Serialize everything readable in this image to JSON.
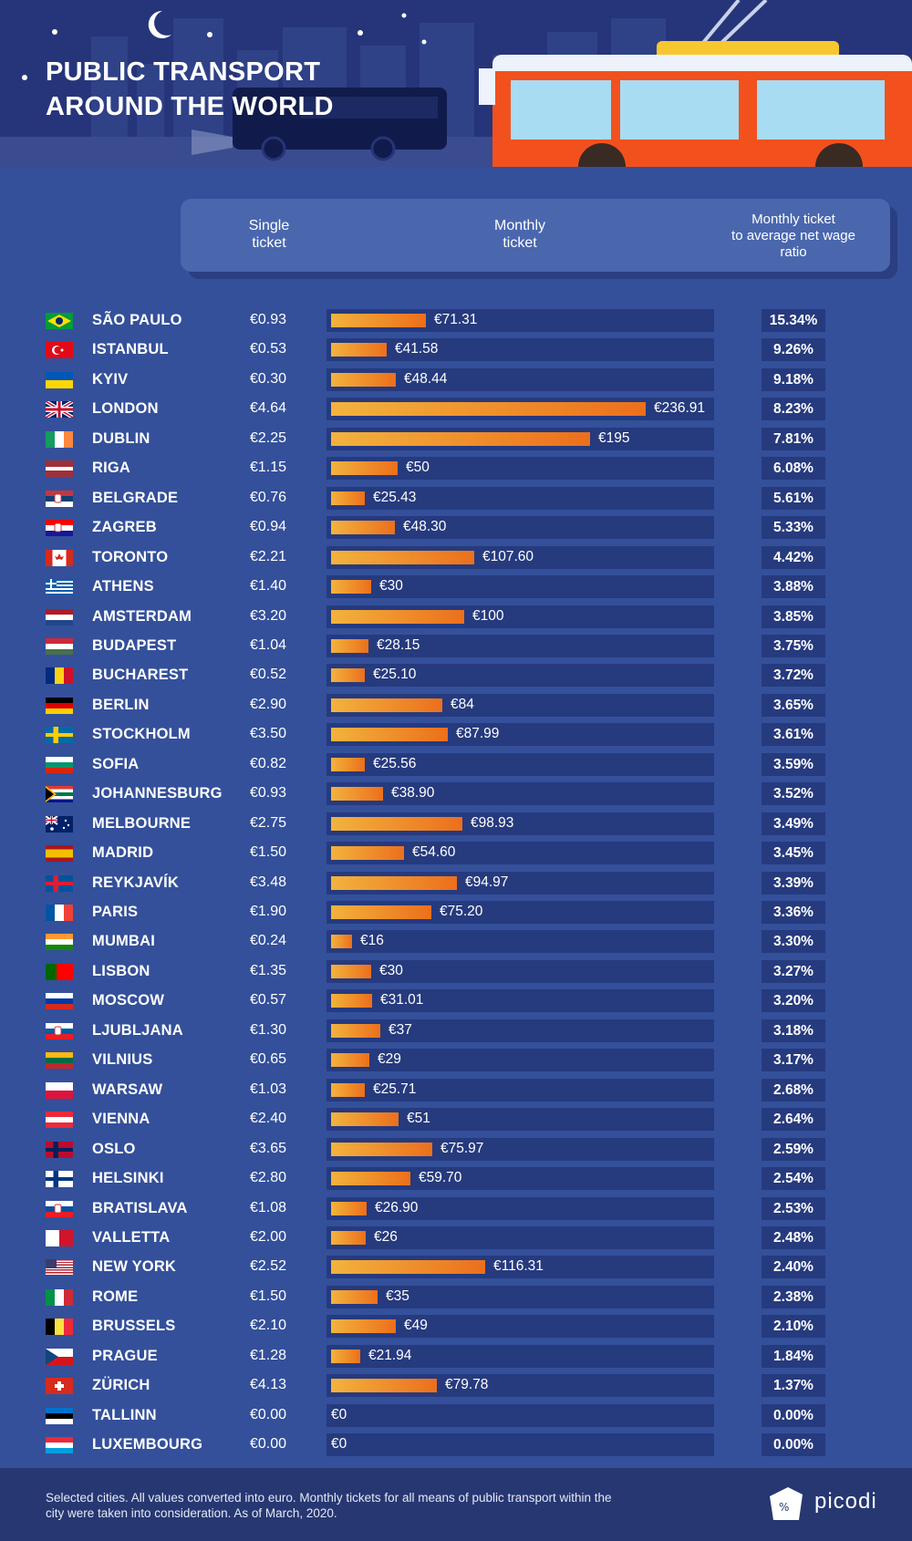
{
  "title_line1": "PUBLIC TRANSPORT",
  "title_line2": "AROUND THE WORLD",
  "columns": {
    "single": "Single\nticket",
    "monthly": "Monthly\nticket",
    "ratio": "Monthly ticket\nto average net wage\nratio"
  },
  "footer_note": "Selected cities. All values converted into euro. Monthly tickets for all means of public transport within the city were taken into consideration. As of March, 2020.",
  "brand": "picodi",
  "colors": {
    "bar_start": "#f2b33d",
    "bar_end": "#ec6f1c",
    "background": "#34509a",
    "track": "#263a7e"
  },
  "chart_data": {
    "type": "bar",
    "title": "PUBLIC TRANSPORT AROUND THE WORLD",
    "value_max": 236.91,
    "rows": [
      {
        "city": "SÃO PAULO",
        "flag": "brazil-flag-icon",
        "single": "€0.93",
        "monthly": 71.31,
        "monthly_label": "€71.31",
        "ratio": "15.34%"
      },
      {
        "city": "ISTANBUL",
        "flag": "turkey-flag-icon",
        "single": "€0.53",
        "monthly": 41.58,
        "monthly_label": "€41.58",
        "ratio": "9.26%"
      },
      {
        "city": "KYIV",
        "flag": "ukraine-flag-icon",
        "single": "€0.30",
        "monthly": 48.44,
        "monthly_label": "€48.44",
        "ratio": "9.18%"
      },
      {
        "city": "LONDON",
        "flag": "uk-flag-icon",
        "single": "€4.64",
        "monthly": 236.91,
        "monthly_label": "€236.91",
        "ratio": "8.23%"
      },
      {
        "city": "DUBLIN",
        "flag": "ireland-flag-icon",
        "single": "€2.25",
        "monthly": 195,
        "monthly_label": "€195",
        "ratio": "7.81%"
      },
      {
        "city": "RIGA",
        "flag": "latvia-flag-icon",
        "single": "€1.15",
        "monthly": 50,
        "monthly_label": "€50",
        "ratio": "6.08%"
      },
      {
        "city": "BELGRADE",
        "flag": "serbia-flag-icon",
        "single": "€0.76",
        "monthly": 25.43,
        "monthly_label": "€25.43",
        "ratio": "5.61%"
      },
      {
        "city": "ZAGREB",
        "flag": "croatia-flag-icon",
        "single": "€0.94",
        "monthly": 48.3,
        "monthly_label": "€48.30",
        "ratio": "5.33%"
      },
      {
        "city": "TORONTO",
        "flag": "canada-flag-icon",
        "single": "€2.21",
        "monthly": 107.6,
        "monthly_label": "€107.60",
        "ratio": "4.42%"
      },
      {
        "city": "ATHENS",
        "flag": "greece-flag-icon",
        "single": "€1.40",
        "monthly": 30,
        "monthly_label": "€30",
        "ratio": "3.88%"
      },
      {
        "city": "AMSTERDAM",
        "flag": "netherlands-flag-icon",
        "single": "€3.20",
        "monthly": 100,
        "monthly_label": "€100",
        "ratio": "3.85%"
      },
      {
        "city": "BUDAPEST",
        "flag": "hungary-flag-icon",
        "single": "€1.04",
        "monthly": 28.15,
        "monthly_label": "€28.15",
        "ratio": "3.75%"
      },
      {
        "city": "BUCHAREST",
        "flag": "romania-flag-icon",
        "single": "€0.52",
        "monthly": 25.1,
        "monthly_label": "€25.10",
        "ratio": "3.72%"
      },
      {
        "city": "BERLIN",
        "flag": "germany-flag-icon",
        "single": "€2.90",
        "monthly": 84,
        "monthly_label": "€84",
        "ratio": "3.65%"
      },
      {
        "city": "STOCKHOLM",
        "flag": "sweden-flag-icon",
        "single": "€3.50",
        "monthly": 87.99,
        "monthly_label": "€87.99",
        "ratio": "3.61%"
      },
      {
        "city": "SOFIA",
        "flag": "bulgaria-flag-icon",
        "single": "€0.82",
        "monthly": 25.56,
        "monthly_label": "€25.56",
        "ratio": "3.59%"
      },
      {
        "city": "JOHANNESBURG",
        "flag": "south-africa-flag-icon",
        "single": "€0.93",
        "monthly": 38.9,
        "monthly_label": "€38.90",
        "ratio": "3.52%"
      },
      {
        "city": "MELBOURNE",
        "flag": "australia-flag-icon",
        "single": "€2.75",
        "monthly": 98.93,
        "monthly_label": "€98.93",
        "ratio": "3.49%"
      },
      {
        "city": "MADRID",
        "flag": "spain-flag-icon",
        "single": "€1.50",
        "monthly": 54.6,
        "monthly_label": "€54.60",
        "ratio": "3.45%"
      },
      {
        "city": "REYKJAVÍK",
        "flag": "iceland-flag-icon",
        "single": "€3.48",
        "monthly": 94.97,
        "monthly_label": "€94.97",
        "ratio": "3.39%"
      },
      {
        "city": "PARIS",
        "flag": "france-flag-icon",
        "single": "€1.90",
        "monthly": 75.2,
        "monthly_label": "€75.20",
        "ratio": "3.36%"
      },
      {
        "city": "MUMBAI",
        "flag": "india-flag-icon",
        "single": "€0.24",
        "monthly": 16,
        "monthly_label": "€16",
        "ratio": "3.30%"
      },
      {
        "city": "LISBON",
        "flag": "portugal-flag-icon",
        "single": "€1.35",
        "monthly": 30,
        "monthly_label": "€30",
        "ratio": "3.27%"
      },
      {
        "city": "MOSCOW",
        "flag": "russia-flag-icon",
        "single": "€0.57",
        "monthly": 31.01,
        "monthly_label": "€31.01",
        "ratio": "3.20%"
      },
      {
        "city": "LJUBLJANA",
        "flag": "slovenia-flag-icon",
        "single": "€1.30",
        "monthly": 37,
        "monthly_label": "€37",
        "ratio": "3.18%"
      },
      {
        "city": "VILNIUS",
        "flag": "lithuania-flag-icon",
        "single": "€0.65",
        "monthly": 29,
        "monthly_label": "€29",
        "ratio": "3.17%"
      },
      {
        "city": "WARSAW",
        "flag": "poland-flag-icon",
        "single": "€1.03",
        "monthly": 25.71,
        "monthly_label": "€25.71",
        "ratio": "2.68%"
      },
      {
        "city": "VIENNA",
        "flag": "austria-flag-icon",
        "single": "€2.40",
        "monthly": 51,
        "monthly_label": "€51",
        "ratio": "2.64%"
      },
      {
        "city": "OSLO",
        "flag": "norway-flag-icon",
        "single": "€3.65",
        "monthly": 75.97,
        "monthly_label": "€75.97",
        "ratio": "2.59%"
      },
      {
        "city": "HELSINKI",
        "flag": "finland-flag-icon",
        "single": "€2.80",
        "monthly": 59.7,
        "monthly_label": "€59.70",
        "ratio": "2.54%"
      },
      {
        "city": "BRATISLAVA",
        "flag": "slovakia-flag-icon",
        "single": "€1.08",
        "monthly": 26.9,
        "monthly_label": "€26.90",
        "ratio": "2.53%"
      },
      {
        "city": "VALLETTA",
        "flag": "malta-flag-icon",
        "single": "€2.00",
        "monthly": 26,
        "monthly_label": "€26",
        "ratio": "2.48%"
      },
      {
        "city": "NEW YORK",
        "flag": "usa-flag-icon",
        "single": "€2.52",
        "monthly": 116.31,
        "monthly_label": "€116.31",
        "ratio": "2.40%"
      },
      {
        "city": "ROME",
        "flag": "italy-flag-icon",
        "single": "€1.50",
        "monthly": 35,
        "monthly_label": "€35",
        "ratio": "2.38%"
      },
      {
        "city": "BRUSSELS",
        "flag": "belgium-flag-icon",
        "single": "€2.10",
        "monthly": 49,
        "monthly_label": "€49",
        "ratio": "2.10%"
      },
      {
        "city": "PRAGUE",
        "flag": "czech-flag-icon",
        "single": "€1.28",
        "monthly": 21.94,
        "monthly_label": "€21.94",
        "ratio": "1.84%"
      },
      {
        "city": "ZÜRICH",
        "flag": "switzerland-flag-icon",
        "single": "€4.13",
        "monthly": 79.78,
        "monthly_label": "€79.78",
        "ratio": "1.37%"
      },
      {
        "city": "TALLINN",
        "flag": "estonia-flag-icon",
        "single": "€0.00",
        "monthly": 0,
        "monthly_label": "€0",
        "ratio": "0.00%"
      },
      {
        "city": "LUXEMBOURG",
        "flag": "luxembourg-flag-icon",
        "single": "€0.00",
        "monthly": 0,
        "monthly_label": "€0",
        "ratio": "0.00%"
      }
    ]
  }
}
